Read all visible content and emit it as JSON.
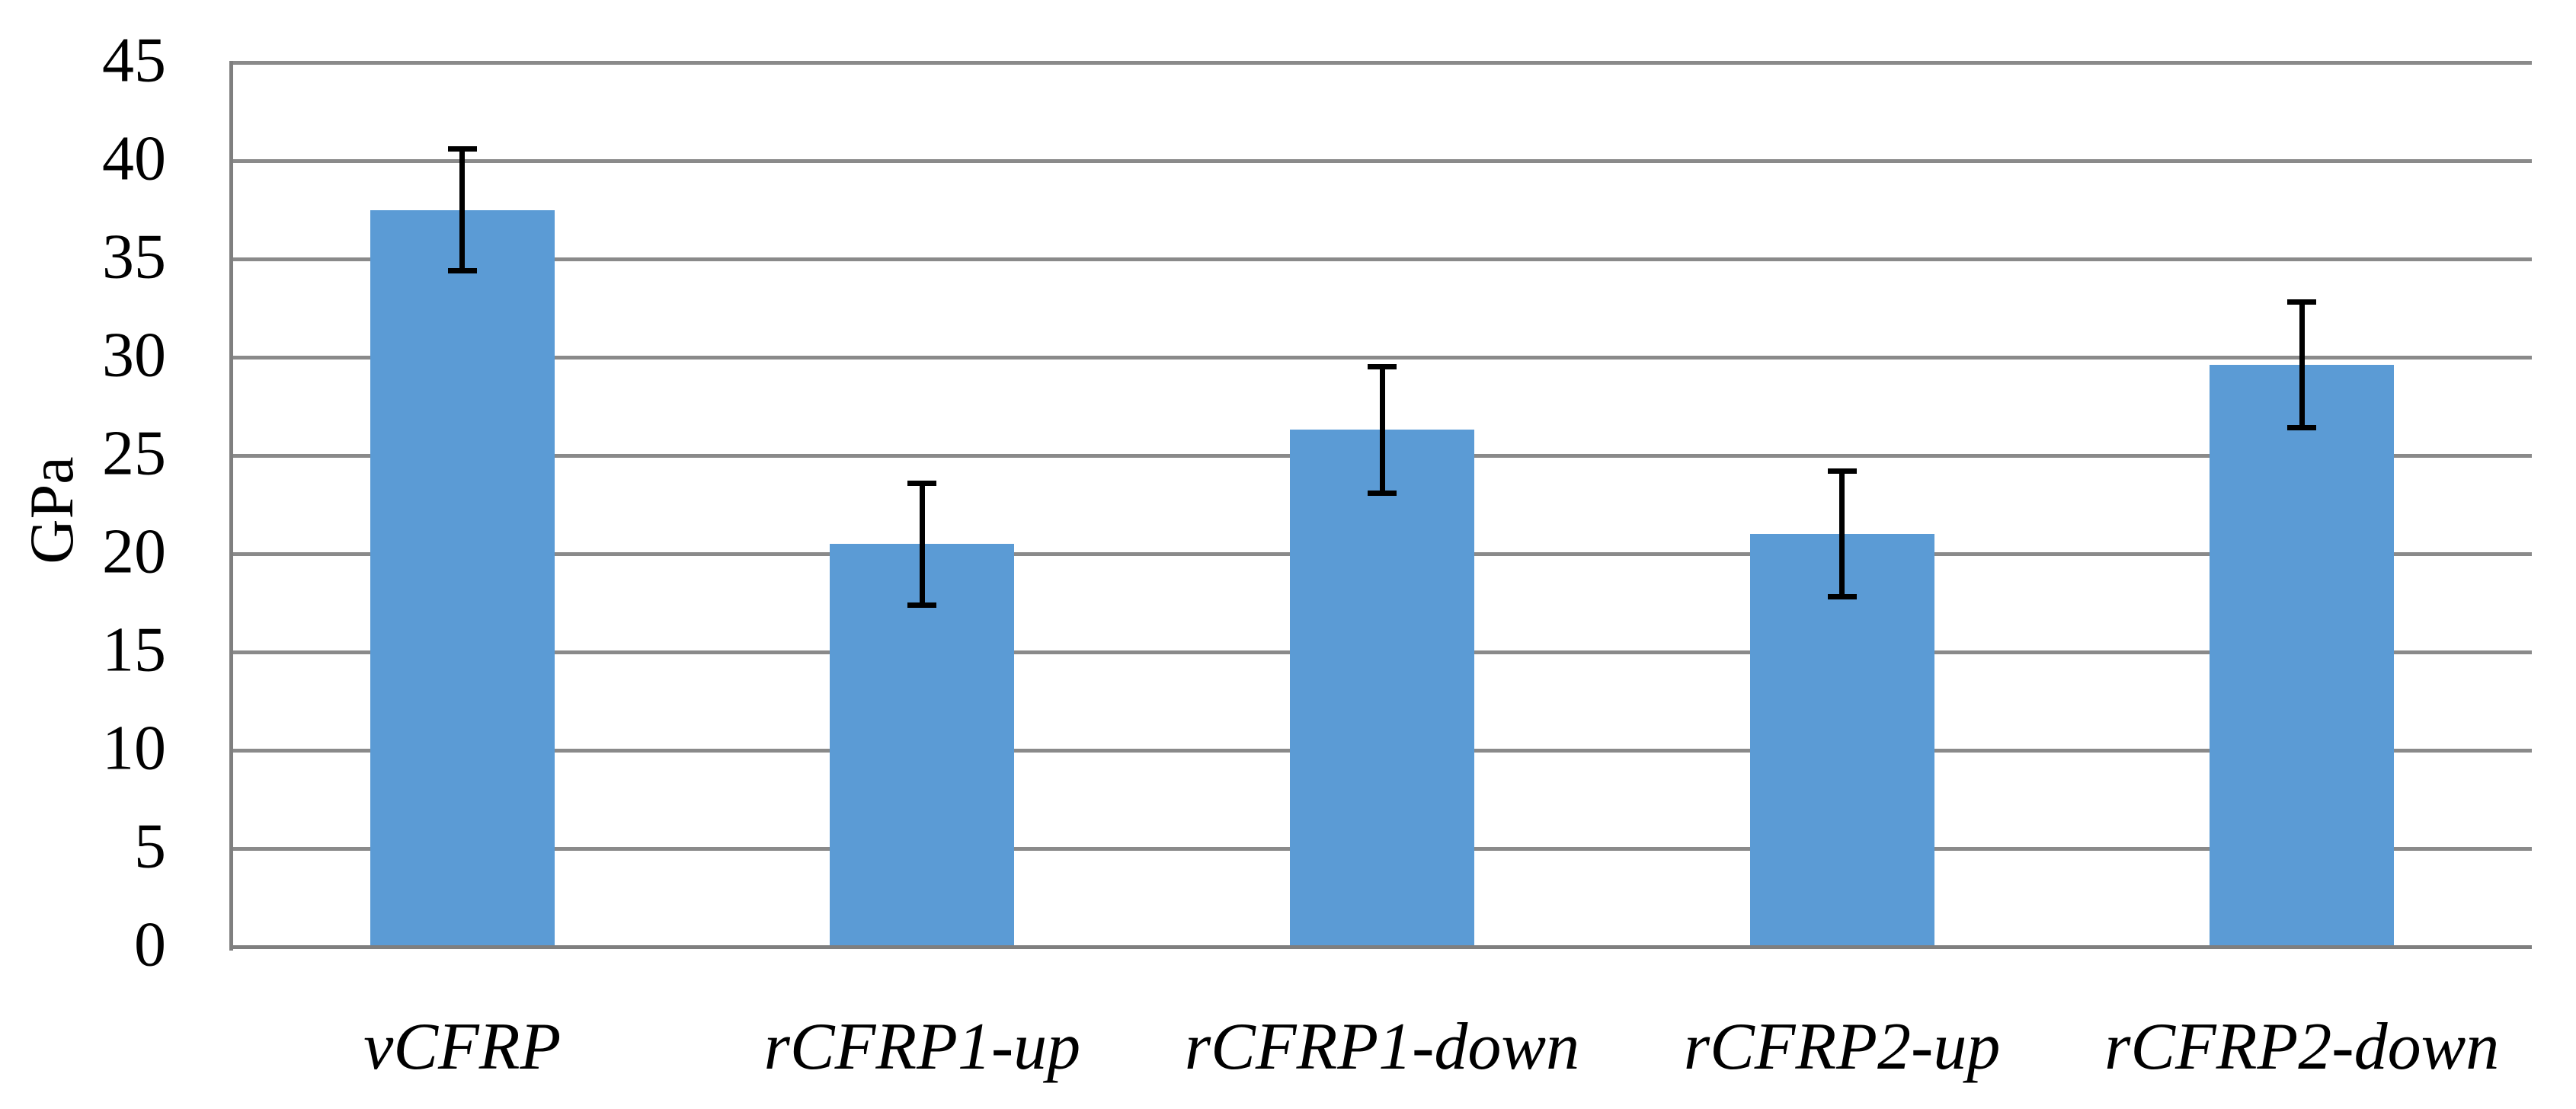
{
  "chart_data": {
    "type": "bar",
    "title": "",
    "ylabel": "GPa",
    "xlabel": "",
    "categories": [
      "vCFRP",
      "rCFRP1-up",
      "rCFRP1-down",
      "rCFRP2-up",
      "rCFRP2-down"
    ],
    "values": [
      37.5,
      20.5,
      26.3,
      21.0,
      29.6
    ],
    "error_bars": [
      3.1,
      3.1,
      3.2,
      3.2,
      3.2
    ],
    "ylim": [
      0,
      45
    ],
    "ytick_step": 5,
    "ytick_labels": [
      "0",
      "5",
      "10",
      "15",
      "20",
      "25",
      "30",
      "35",
      "40",
      "45"
    ],
    "grid": "horizontal-only",
    "legend": "none",
    "colors": {
      "bar_fill": "#5B9BD5",
      "gridline": "#8A8A8A",
      "axis": "#7F7F7F",
      "error_bar": "#000000",
      "text": "#000000",
      "background": "#FFFFFF"
    }
  }
}
